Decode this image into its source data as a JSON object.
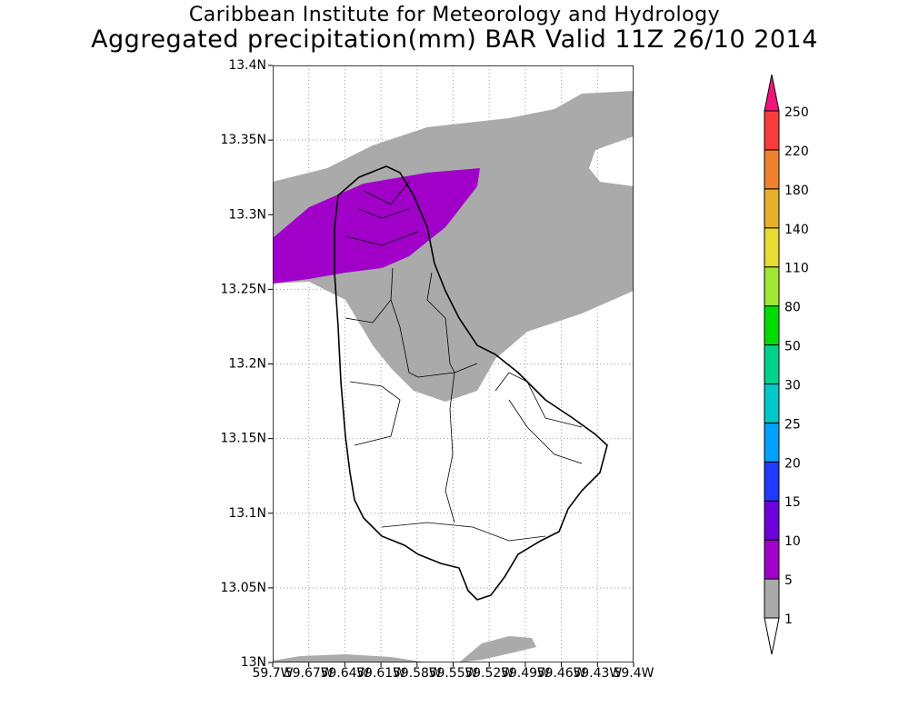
{
  "title": {
    "line1": "Caribbean Institute for Meteorology and Hydrology",
    "line2": "Aggregated precipitation(mm) BAR Valid 11Z 26/10 2014"
  },
  "chart_data": {
    "type": "heatmap",
    "title": "Aggregated precipitation(mm) BAR Valid 11Z 26/10 2014",
    "region": "Barbados",
    "xlim": [
      -59.7,
      -59.4
    ],
    "ylim": [
      13.0,
      13.4
    ],
    "x_ticks": [
      "59.7W",
      "59.67W",
      "59.64W",
      "59.61W",
      "59.58W",
      "59.55W",
      "59.52W",
      "59.49W",
      "59.46W",
      "59.43W",
      "59.4W"
    ],
    "y_ticks": [
      "13N",
      "13.05N",
      "13.1N",
      "13.15N",
      "13.2N",
      "13.25N",
      "13.3N",
      "13.35N",
      "13.4N"
    ],
    "grid": true,
    "observed_classes": [
      "1-5 mm over northern half and north sea",
      "5-10 mm over northern tip"
    ],
    "colorbar": {
      "labels": [
        "1",
        "5",
        "10",
        "15",
        "20",
        "25",
        "30",
        "50",
        "80",
        "110",
        "140",
        "180",
        "220",
        "250"
      ],
      "colors": [
        "#aaaaaa",
        "#a000c8",
        "#6e00dc",
        "#1e3cff",
        "#00a0ff",
        "#00c8c8",
        "#00d28c",
        "#00dc00",
        "#a0e632",
        "#e6dc32",
        "#e6af2d",
        "#f0822d",
        "#fa3c3c"
      ],
      "below_color": "#ffffff",
      "above_color": "#f0147d"
    }
  }
}
